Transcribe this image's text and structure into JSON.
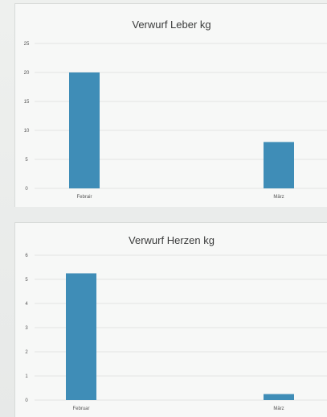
{
  "chart_data": [
    {
      "type": "bar",
      "title": "Verwurf Leber kg",
      "categories": [
        "Febrair",
        "März"
      ],
      "values": [
        20,
        8
      ],
      "ylim": [
        0,
        25
      ],
      "yticks": [
        0,
        5,
        10,
        15,
        20,
        25
      ],
      "grid": true,
      "color": "#3f8db7"
    },
    {
      "type": "bar",
      "title": "Verwurf Herzen kg",
      "categories": [
        "Februar",
        "März"
      ],
      "values": [
        5.25,
        0.25
      ],
      "ylim": [
        0,
        6
      ],
      "yticks": [
        0,
        1,
        2,
        3,
        4,
        5,
        6
      ],
      "grid": true,
      "color": "#3f8db7"
    }
  ]
}
